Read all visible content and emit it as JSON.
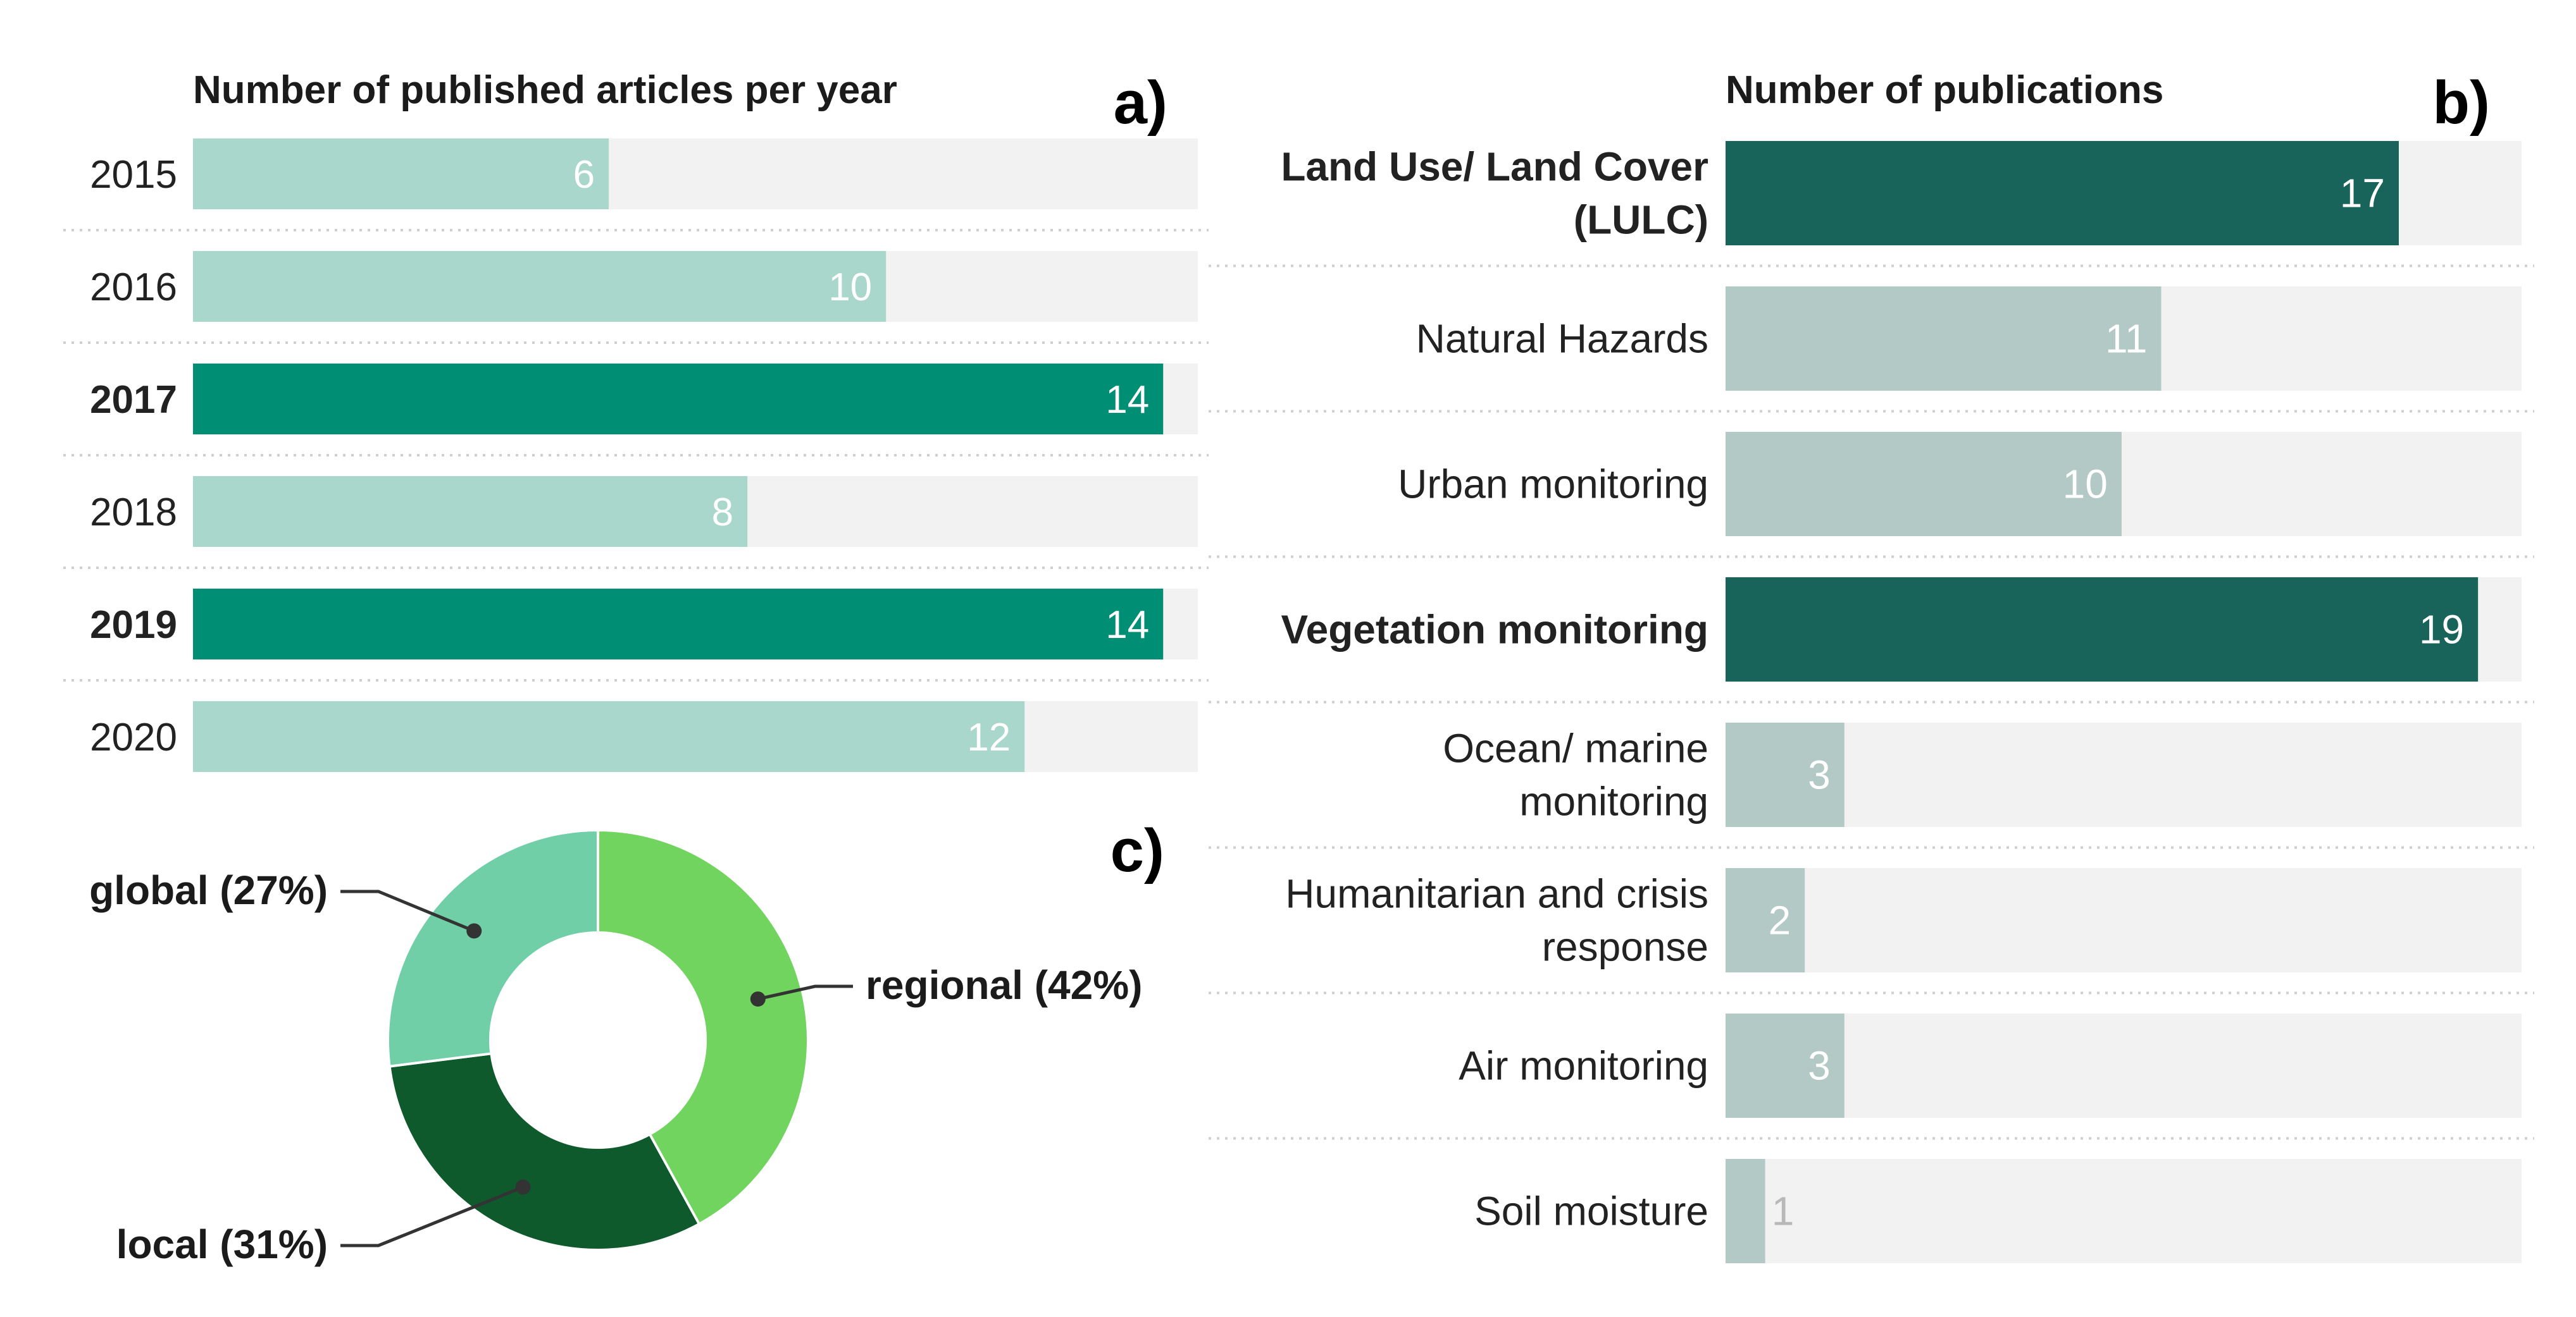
{
  "chart_data": [
    {
      "id": "a",
      "type": "bar",
      "orientation": "horizontal",
      "panel_label": "a)",
      "title": "Number of published articles per year",
      "categories": [
        "2015",
        "2016",
        "2017",
        "2018",
        "2019",
        "2020"
      ],
      "values": [
        6,
        10,
        14,
        8,
        14,
        12
      ],
      "highlighted": [
        "2017",
        "2019"
      ],
      "xlim": [
        0,
        14.5
      ],
      "colors": {
        "normal": "#a9d7cc",
        "highlight": "#008e74",
        "track": "#f2f2f2"
      }
    },
    {
      "id": "b",
      "type": "bar",
      "orientation": "horizontal",
      "panel_label": "b)",
      "title": "Number of publications",
      "categories": [
        "Land Use/ Land Cover (LULC)",
        "Natural Hazards",
        "Urban monitoring",
        "Vegetation monitoring",
        "Ocean/ marine monitoring",
        "Humanitarian and crisis response",
        "Air monitoring",
        "Soil moisture"
      ],
      "category_lines": [
        [
          "Land Use/ Land Cover",
          "(LULC)"
        ],
        [
          "Natural Hazards"
        ],
        [
          "Urban monitoring"
        ],
        [
          "Vegetation monitoring"
        ],
        [
          "Ocean/ marine",
          "monitoring"
        ],
        [
          "Humanitarian and crisis",
          "response"
        ],
        [
          "Air monitoring"
        ],
        [
          "Soil moisture"
        ]
      ],
      "values": [
        17,
        11,
        10,
        19,
        3,
        2,
        3,
        1
      ],
      "highlighted": [
        "Land Use/ Land Cover (LULC)",
        "Vegetation monitoring"
      ],
      "xlim": [
        0,
        20.1
      ],
      "colors": {
        "normal": "#b3c9c5",
        "highlight": "#18635a",
        "track": "#f2f2f2",
        "outside_label": "#b8b8b8"
      }
    },
    {
      "id": "c",
      "type": "pie",
      "donut": true,
      "panel_label": "c)",
      "slices": [
        {
          "label": "regional",
          "value": 42,
          "text": "regional (42%)",
          "color": "#70d45e"
        },
        {
          "label": "local",
          "value": 31,
          "text": "local (31%)",
          "color": "#0f5a2c"
        },
        {
          "label": "global",
          "value": 27,
          "text": "global (27%)",
          "color": "#70cfa7"
        }
      ]
    }
  ]
}
